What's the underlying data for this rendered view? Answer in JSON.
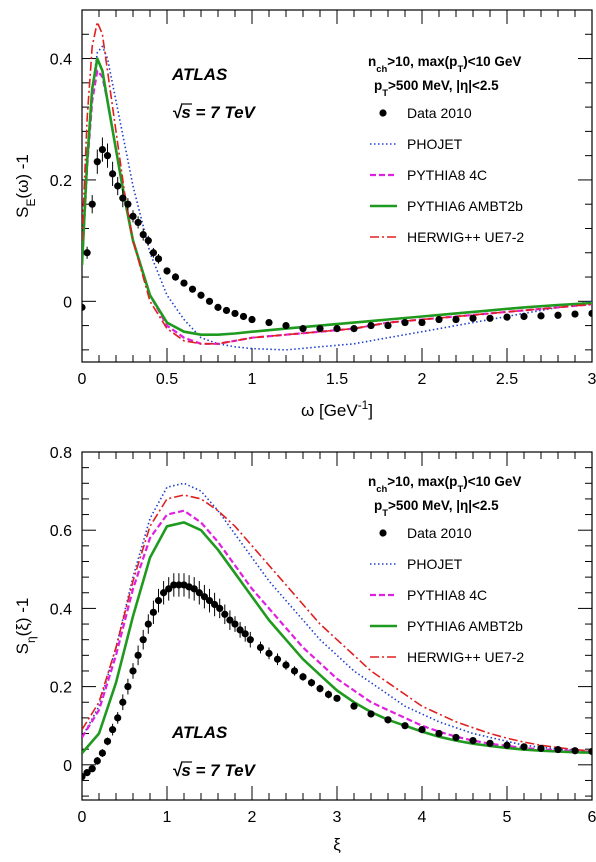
{
  "chart_data": [
    {
      "id": "top",
      "type": "line",
      "experiment": "ATLAS",
      "energy": "√s = 7 TeV",
      "cuts": [
        "n_ch>10, max(p_T)<10 GeV",
        "p_T>500 MeV, |η|<2.5"
      ],
      "xlabel": "ω [GeV⁻¹]",
      "ylabel": "S_E(ω) -1",
      "xlim": [
        0,
        3
      ],
      "ylim": [
        -0.1,
        0.48
      ],
      "xticks": [
        0,
        0.5,
        1,
        1.5,
        2,
        2.5,
        3
      ],
      "xtick_labels": [
        "0",
        "0.5",
        "1",
        "1.5",
        "2",
        "2.5",
        "3"
      ],
      "yticks": [
        0,
        0.2,
        0.4
      ],
      "ytick_labels": [
        "0",
        "0.2",
        "0.4"
      ],
      "grid": false,
      "legend_position": "top-right",
      "series": [
        {
          "name": "Data 2010",
          "style": "points",
          "color": "#000000",
          "x": [
            0.0,
            0.03,
            0.06,
            0.09,
            0.12,
            0.15,
            0.18,
            0.21,
            0.24,
            0.27,
            0.3,
            0.33,
            0.36,
            0.39,
            0.42,
            0.45,
            0.5,
            0.55,
            0.6,
            0.65,
            0.7,
            0.75,
            0.8,
            0.85,
            0.9,
            0.95,
            1.0,
            1.1,
            1.2,
            1.3,
            1.4,
            1.5,
            1.6,
            1.7,
            1.8,
            1.9,
            2.0,
            2.1,
            2.2,
            2.3,
            2.4,
            2.5,
            2.6,
            2.7,
            2.8,
            2.9,
            3.0
          ],
          "y": [
            -0.01,
            0.08,
            0.16,
            0.23,
            0.25,
            0.24,
            0.21,
            0.19,
            0.17,
            0.16,
            0.14,
            0.13,
            0.11,
            0.1,
            0.08,
            0.07,
            0.05,
            0.04,
            0.03,
            0.02,
            0.01,
            0.0,
            -0.01,
            -0.015,
            -0.02,
            -0.025,
            -0.03,
            -0.035,
            -0.04,
            -0.045,
            -0.045,
            -0.045,
            -0.045,
            -0.04,
            -0.04,
            -0.035,
            -0.035,
            -0.03,
            -0.03,
            -0.028,
            -0.028,
            -0.026,
            -0.025,
            -0.024,
            -0.023,
            -0.021,
            -0.02
          ],
          "err": [
            0.0,
            0.01,
            0.015,
            0.02,
            0.02,
            0.02,
            0.02,
            0.015,
            0.015,
            0.01,
            0.01,
            0.01,
            0.01,
            0.008,
            0.008,
            0.008,
            0.006,
            0.006,
            0.005,
            0.005,
            0.005,
            0.005,
            0.005,
            0.005,
            0.005,
            0.005,
            0.005,
            0.005,
            0.005,
            0.005,
            0.005,
            0.005,
            0.005,
            0.005,
            0.005,
            0.005,
            0.005,
            0.005,
            0.005,
            0.005,
            0.005,
            0.005,
            0.005,
            0.005,
            0.005,
            0.005,
            0.005
          ]
        },
        {
          "name": "PHOJET",
          "style": "dotted",
          "color": "#1f3fd0",
          "x": [
            0.0,
            0.03,
            0.06,
            0.09,
            0.12,
            0.15,
            0.2,
            0.25,
            0.3,
            0.4,
            0.5,
            0.6,
            0.7,
            0.8,
            0.9,
            1.0,
            1.2,
            1.4,
            1.6,
            1.8,
            2.0,
            2.2,
            2.4,
            2.6,
            2.8,
            3.0
          ],
          "y": [
            0.08,
            0.22,
            0.35,
            0.41,
            0.42,
            0.4,
            0.33,
            0.26,
            0.19,
            0.08,
            0.01,
            -0.03,
            -0.06,
            -0.07,
            -0.075,
            -0.078,
            -0.08,
            -0.075,
            -0.07,
            -0.06,
            -0.05,
            -0.04,
            -0.03,
            -0.02,
            -0.01,
            0.0
          ]
        },
        {
          "name": "PYTHIA8 4C",
          "style": "dashed",
          "color": "#e020e0",
          "x": [
            0.0,
            0.03,
            0.06,
            0.09,
            0.12,
            0.15,
            0.2,
            0.25,
            0.3,
            0.4,
            0.5,
            0.6,
            0.7,
            0.8,
            0.9,
            1.0,
            1.2,
            1.4,
            1.6,
            1.8,
            2.0,
            2.2,
            2.4,
            2.6,
            2.8,
            3.0
          ],
          "y": [
            0.06,
            0.22,
            0.33,
            0.38,
            0.37,
            0.33,
            0.25,
            0.17,
            0.1,
            0.01,
            -0.04,
            -0.06,
            -0.07,
            -0.07,
            -0.065,
            -0.06,
            -0.055,
            -0.05,
            -0.045,
            -0.035,
            -0.03,
            -0.025,
            -0.02,
            -0.015,
            -0.01,
            -0.005
          ]
        },
        {
          "name": "PYTHIA6 AMBT2b",
          "style": "solid",
          "color": "#1f9a1f",
          "x": [
            0.0,
            0.03,
            0.06,
            0.09,
            0.12,
            0.15,
            0.2,
            0.25,
            0.3,
            0.4,
            0.5,
            0.6,
            0.7,
            0.8,
            0.9,
            1.0,
            1.2,
            1.4,
            1.6,
            1.8,
            2.0,
            2.2,
            2.4,
            2.6,
            2.8,
            3.0
          ],
          "y": [
            0.06,
            0.23,
            0.35,
            0.4,
            0.38,
            0.33,
            0.25,
            0.17,
            0.1,
            0.01,
            -0.035,
            -0.05,
            -0.055,
            -0.055,
            -0.053,
            -0.05,
            -0.045,
            -0.04,
            -0.035,
            -0.03,
            -0.025,
            -0.02,
            -0.015,
            -0.01,
            -0.006,
            -0.003
          ]
        },
        {
          "name": "HERWIG++ UE7-2",
          "style": "dashdot",
          "color": "#e02020",
          "x": [
            0.0,
            0.03,
            0.06,
            0.09,
            0.12,
            0.15,
            0.2,
            0.25,
            0.3,
            0.4,
            0.5,
            0.6,
            0.7,
            0.8,
            0.9,
            1.0,
            1.2,
            1.4,
            1.6,
            1.8,
            2.0,
            2.2,
            2.4,
            2.6,
            2.8,
            3.0
          ],
          "y": [
            0.1,
            0.3,
            0.42,
            0.46,
            0.44,
            0.38,
            0.28,
            0.18,
            0.1,
            0.0,
            -0.045,
            -0.065,
            -0.07,
            -0.07,
            -0.065,
            -0.06,
            -0.055,
            -0.05,
            -0.045,
            -0.035,
            -0.03,
            -0.025,
            -0.02,
            -0.015,
            -0.01,
            -0.005
          ]
        }
      ]
    },
    {
      "id": "bottom",
      "type": "line",
      "experiment": "ATLAS",
      "energy": "√s = 7 TeV",
      "cuts": [
        "n_ch>10, max(p_T)<10 GeV",
        "p_T>500 MeV, |η|<2.5"
      ],
      "xlabel": "ξ",
      "ylabel": "S_η(ξ) -1",
      "xlim": [
        0,
        6
      ],
      "ylim": [
        -0.09,
        0.8
      ],
      "xticks": [
        0,
        1,
        2,
        3,
        4,
        5,
        6
      ],
      "xtick_labels": [
        "0",
        "1",
        "2",
        "3",
        "4",
        "5",
        "6"
      ],
      "yticks": [
        0,
        0.2,
        0.4,
        0.6,
        0.8
      ],
      "ytick_labels": [
        "0",
        "0.2",
        "0.4",
        "0.6",
        "0.8"
      ],
      "grid": false,
      "legend_position": "top-right",
      "series": [
        {
          "name": "Data 2010",
          "style": "points",
          "color": "#000000",
          "x": [
            0.0,
            0.06,
            0.12,
            0.18,
            0.24,
            0.3,
            0.36,
            0.42,
            0.48,
            0.54,
            0.6,
            0.66,
            0.72,
            0.78,
            0.84,
            0.9,
            0.96,
            1.02,
            1.08,
            1.14,
            1.2,
            1.26,
            1.32,
            1.38,
            1.44,
            1.5,
            1.56,
            1.62,
            1.68,
            1.74,
            1.8,
            1.86,
            1.92,
            1.98,
            2.1,
            2.2,
            2.3,
            2.4,
            2.5,
            2.6,
            2.7,
            2.8,
            2.9,
            3.0,
            3.2,
            3.4,
            3.6,
            3.8,
            4.0,
            4.2,
            4.4,
            4.6,
            4.8,
            5.0,
            5.2,
            5.4,
            5.6,
            5.8,
            6.0
          ],
          "y": [
            -0.03,
            -0.02,
            -0.01,
            0.01,
            0.03,
            0.06,
            0.09,
            0.12,
            0.16,
            0.2,
            0.24,
            0.28,
            0.32,
            0.36,
            0.39,
            0.42,
            0.44,
            0.45,
            0.46,
            0.46,
            0.46,
            0.455,
            0.45,
            0.44,
            0.43,
            0.42,
            0.41,
            0.4,
            0.385,
            0.37,
            0.36,
            0.345,
            0.335,
            0.32,
            0.3,
            0.285,
            0.27,
            0.255,
            0.24,
            0.225,
            0.21,
            0.195,
            0.18,
            0.17,
            0.15,
            0.13,
            0.115,
            0.1,
            0.09,
            0.08,
            0.07,
            0.062,
            0.055,
            0.05,
            0.046,
            0.042,
            0.039,
            0.036,
            0.034
          ],
          "err": [
            0.0,
            0.005,
            0.005,
            0.01,
            0.01,
            0.01,
            0.015,
            0.015,
            0.02,
            0.02,
            0.02,
            0.025,
            0.025,
            0.025,
            0.03,
            0.03,
            0.03,
            0.03,
            0.03,
            0.03,
            0.03,
            0.03,
            0.03,
            0.03,
            0.03,
            0.03,
            0.03,
            0.025,
            0.025,
            0.025,
            0.02,
            0.02,
            0.02,
            0.02,
            0.015,
            0.015,
            0.015,
            0.012,
            0.012,
            0.01,
            0.01,
            0.01,
            0.01,
            0.008,
            0.008,
            0.006,
            0.006,
            0.005,
            0.005,
            0.005,
            0.004,
            0.004,
            0.003,
            0.003,
            0.003,
            0.003,
            0.003,
            0.003,
            0.003
          ]
        },
        {
          "name": "PHOJET",
          "style": "dotted",
          "color": "#1f3fd0",
          "x": [
            0.0,
            0.2,
            0.4,
            0.6,
            0.8,
            1.0,
            1.2,
            1.4,
            1.6,
            1.8,
            2.0,
            2.2,
            2.4,
            2.6,
            2.8,
            3.0,
            3.2,
            3.4,
            3.6,
            3.8,
            4.0,
            4.2,
            4.4,
            4.6,
            4.8,
            5.0,
            5.2,
            5.4,
            5.6,
            5.8,
            6.0
          ],
          "y": [
            0.07,
            0.15,
            0.3,
            0.48,
            0.63,
            0.71,
            0.72,
            0.7,
            0.65,
            0.59,
            0.53,
            0.47,
            0.42,
            0.37,
            0.32,
            0.28,
            0.24,
            0.21,
            0.18,
            0.15,
            0.13,
            0.11,
            0.095,
            0.08,
            0.07,
            0.06,
            0.05,
            0.045,
            0.04,
            0.037,
            0.034
          ]
        },
        {
          "name": "PYTHIA8 4C",
          "style": "dashed",
          "color": "#e020e0",
          "x": [
            0.0,
            0.2,
            0.4,
            0.6,
            0.8,
            1.0,
            1.2,
            1.4,
            1.6,
            1.8,
            2.0,
            2.2,
            2.4,
            2.6,
            2.8,
            3.0,
            3.2,
            3.4,
            3.6,
            3.8,
            4.0,
            4.2,
            4.4,
            4.6,
            4.8,
            5.0,
            5.2,
            5.4,
            5.6,
            5.8,
            6.0
          ],
          "y": [
            0.07,
            0.14,
            0.28,
            0.45,
            0.58,
            0.64,
            0.65,
            0.62,
            0.57,
            0.51,
            0.45,
            0.4,
            0.35,
            0.3,
            0.26,
            0.22,
            0.19,
            0.16,
            0.14,
            0.12,
            0.1,
            0.085,
            0.072,
            0.062,
            0.054,
            0.048,
            0.043,
            0.04,
            0.037,
            0.035,
            0.033
          ]
        },
        {
          "name": "PYTHIA6 AMBT2b",
          "style": "solid",
          "color": "#1f9a1f",
          "x": [
            0.0,
            0.2,
            0.4,
            0.6,
            0.8,
            1.0,
            1.2,
            1.4,
            1.6,
            1.8,
            2.0,
            2.2,
            2.4,
            2.6,
            2.8,
            3.0,
            3.2,
            3.4,
            3.6,
            3.8,
            4.0,
            4.2,
            4.4,
            4.6,
            4.8,
            5.0,
            5.2,
            5.4,
            5.6,
            5.8,
            6.0
          ],
          "y": [
            0.03,
            0.08,
            0.21,
            0.38,
            0.53,
            0.61,
            0.62,
            0.6,
            0.55,
            0.49,
            0.43,
            0.37,
            0.32,
            0.27,
            0.23,
            0.19,
            0.16,
            0.135,
            0.115,
            0.1,
            0.085,
            0.072,
            0.062,
            0.054,
            0.048,
            0.043,
            0.039,
            0.036,
            0.034,
            0.032,
            0.031
          ]
        },
        {
          "name": "HERWIG++ UE7-2",
          "style": "dashdot",
          "color": "#e02020",
          "x": [
            0.0,
            0.2,
            0.4,
            0.6,
            0.8,
            1.0,
            1.2,
            1.4,
            1.6,
            1.8,
            2.0,
            2.2,
            2.4,
            2.6,
            2.8,
            3.0,
            3.2,
            3.4,
            3.6,
            3.8,
            4.0,
            4.2,
            4.4,
            4.6,
            4.8,
            5.0,
            5.2,
            5.4,
            5.6,
            5.8,
            6.0
          ],
          "y": [
            0.09,
            0.16,
            0.3,
            0.47,
            0.61,
            0.68,
            0.69,
            0.68,
            0.65,
            0.61,
            0.56,
            0.51,
            0.46,
            0.41,
            0.36,
            0.32,
            0.28,
            0.24,
            0.21,
            0.18,
            0.15,
            0.13,
            0.11,
            0.095,
            0.08,
            0.068,
            0.058,
            0.05,
            0.044,
            0.039,
            0.035
          ]
        }
      ]
    }
  ]
}
